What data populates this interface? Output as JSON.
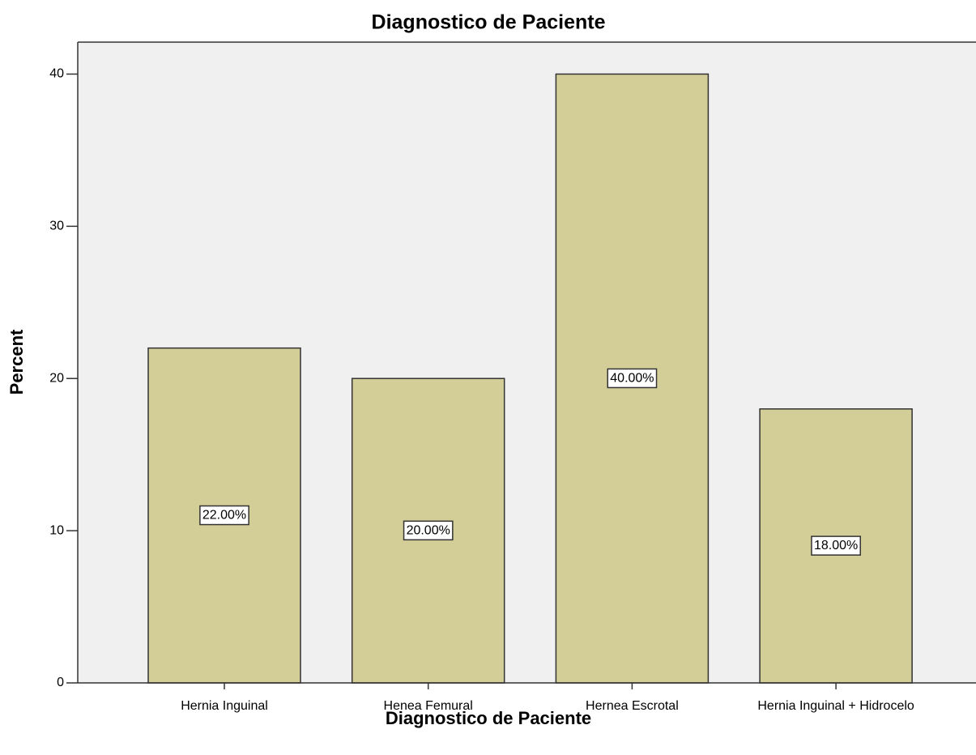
{
  "chart_data": {
    "type": "bar",
    "title": "Diagnostico de Paciente",
    "x_label": "Diagnostico de Paciente",
    "y_label": "Percent",
    "categories": [
      "Hernia Inguinal",
      "Henea Femural",
      "Hernea Escrotal",
      "Hernia Inguinal + Hidrocelo"
    ],
    "values": [
      22,
      20,
      40,
      18
    ],
    "value_labels": [
      "22.00%",
      "20.00%",
      "40.00%",
      "18.00%"
    ],
    "color": "#d3ce97",
    "ylim": [
      0,
      42.1
    ],
    "yticks": [
      0,
      10,
      20,
      30,
      40
    ],
    "grid": false
  }
}
